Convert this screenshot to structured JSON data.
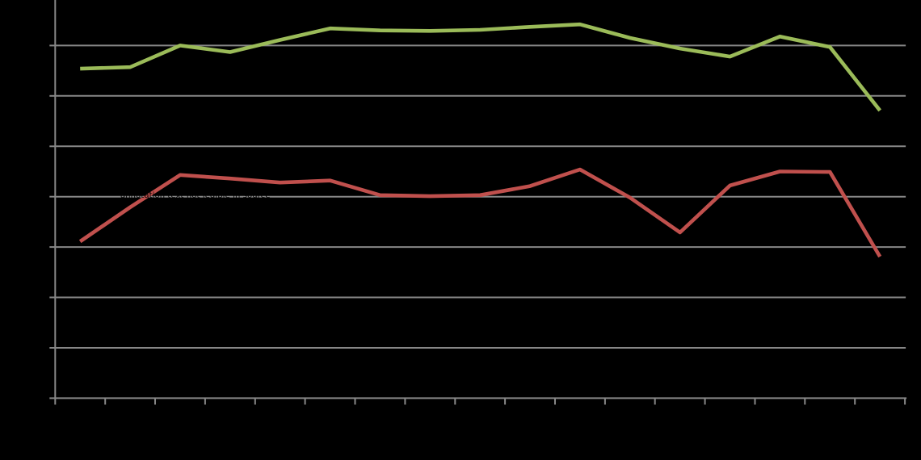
{
  "chart_data": {
    "type": "line",
    "title": "",
    "legend": "none",
    "axis_text_visible": false,
    "x_point_count": 17,
    "x_tick_count": 18,
    "y_gridline_count": 8,
    "y_scale_note": "axis tick labels are not visible (black on black); values given in gridline units, 0 = x-axis baseline, 7 = top visible gridline",
    "series": [
      {
        "name": "upper-green",
        "color": "#9BBB59",
        "values": [
          6.54,
          6.57,
          7.0,
          6.87,
          7.11,
          7.34,
          7.3,
          7.29,
          7.31,
          7.37,
          7.42,
          7.15,
          6.94,
          6.78,
          7.18,
          6.97,
          5.71
        ]
      },
      {
        "name": "lower-red",
        "color": "#C0504D",
        "values": [
          3.11,
          3.79,
          4.43,
          4.36,
          4.28,
          4.32,
          4.03,
          4.01,
          4.03,
          4.21,
          4.54,
          3.98,
          3.29,
          4.22,
          4.5,
          4.49,
          2.81
        ]
      }
    ],
    "annotation": {
      "legible": false,
      "render_stub": "annotation text not legible in source",
      "color": "#000000"
    },
    "colors": {
      "background": "#000000",
      "gridline": "#878787",
      "axis": "#878787"
    }
  }
}
